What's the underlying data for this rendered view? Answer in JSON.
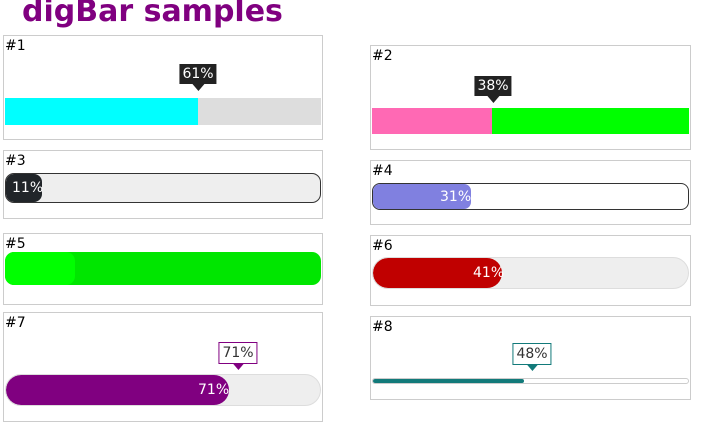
{
  "title": "digBar samples",
  "bars": [
    {
      "label": "#1",
      "value": 61,
      "text": "61%"
    },
    {
      "label": "#2",
      "value": 38,
      "text": "38%"
    },
    {
      "label": "#3",
      "value": 11,
      "text": "11%"
    },
    {
      "label": "#4",
      "value": 31,
      "text": "31%"
    },
    {
      "label": "#5",
      "value": 22,
      "text": ""
    },
    {
      "label": "#6",
      "value": 41,
      "text": "41%"
    },
    {
      "label": "#7",
      "value": 71,
      "text": "71%",
      "inner_text": "71%"
    },
    {
      "label": "#8",
      "value": 48,
      "text": "48%"
    }
  ],
  "colors": {
    "title": "#800080",
    "b1": "#00ffff",
    "b2a": "#ff69b4",
    "b2b": "#00ff00",
    "b3": "#212529",
    "b4": "#8080e0",
    "b5": "#00e600",
    "b6": "#c00000",
    "b7": "#800080",
    "b8": "#127a7a"
  }
}
